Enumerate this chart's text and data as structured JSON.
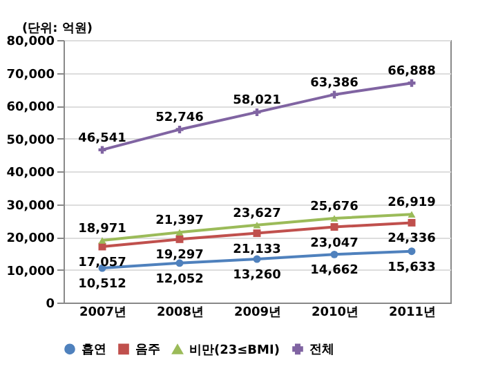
{
  "chart_data": {
    "type": "line",
    "annotations": [
      "(단위: 억원)"
    ],
    "categories": [
      "2007년",
      "2008년",
      "2009년",
      "2010년",
      "2011년"
    ],
    "series": [
      {
        "name": "흡연",
        "color": "#4f81bd",
        "marker": "circle",
        "values": [
          10512,
          12052,
          13260,
          14662,
          15633
        ],
        "value_labels": [
          "10,512",
          "12,052",
          "13,260",
          "14,662",
          "15,633"
        ]
      },
      {
        "name": "음주",
        "color": "#c0504d",
        "marker": "square",
        "values": [
          17057,
          19297,
          21133,
          23047,
          24336
        ],
        "value_labels": [
          "17,057",
          "19,297",
          "21,133",
          "23,047",
          "24,336"
        ]
      },
      {
        "name": "비만(23≤BMI)",
        "color": "#9bbb59",
        "marker": "triangle",
        "values": [
          18971,
          21397,
          23627,
          25676,
          26919
        ],
        "value_labels": [
          "18,971",
          "21,397",
          "23,627",
          "25,676",
          "26,919"
        ]
      },
      {
        "name": "전체",
        "color": "#8064a2",
        "marker": "cross",
        "values": [
          46541,
          52746,
          58021,
          63386,
          66888
        ],
        "value_labels": [
          "46,541",
          "52,746",
          "58,021",
          "63,386",
          "66,888"
        ]
      }
    ],
    "ylim": [
      0,
      80000
    ],
    "yticks": [
      {
        "value": 0,
        "label": "0"
      },
      {
        "value": 10000,
        "label": "10,000"
      },
      {
        "value": 20000,
        "label": "20,000"
      },
      {
        "value": 30000,
        "label": "30,000"
      },
      {
        "value": 40000,
        "label": "40,000"
      },
      {
        "value": 50000,
        "label": "50,000"
      },
      {
        "value": 60000,
        "label": "60,000"
      },
      {
        "value": 70000,
        "label": "70,000"
      },
      {
        "value": 80000,
        "label": "80,000"
      }
    ],
    "grid": "y",
    "legend": "bottom",
    "line_style": "solid",
    "data_labels": true
  }
}
